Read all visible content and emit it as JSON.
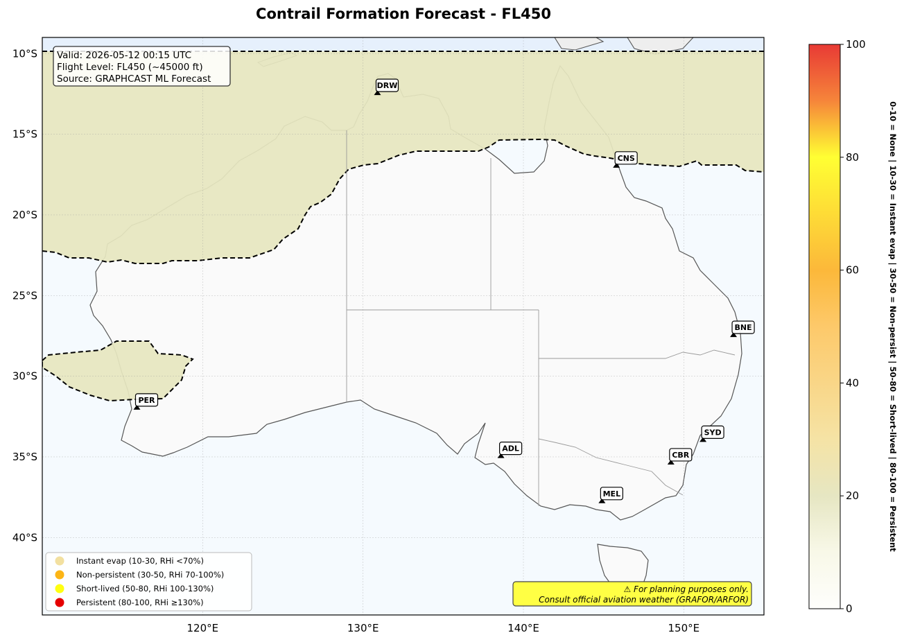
{
  "title": "Contrail Formation Forecast - FL450",
  "info": {
    "valid": "Valid: 2026-05-12 00:15 UTC",
    "flight_level": "Flight Level: FL450 (~45000 ft)",
    "source": "Source: GRAPHCAST ML Forecast"
  },
  "axes": {
    "lat_ticks": [
      {
        "value": -10,
        "label": "10°S"
      },
      {
        "value": -15,
        "label": "15°S"
      },
      {
        "value": -20,
        "label": "20°S"
      },
      {
        "value": -25,
        "label": "25°S"
      },
      {
        "value": -30,
        "label": "30°S"
      },
      {
        "value": -35,
        "label": "35°S"
      },
      {
        "value": -40,
        "label": "40°S"
      }
    ],
    "lon_ticks": [
      {
        "value": 120,
        "label": "120°E"
      },
      {
        "value": 130,
        "label": "130°E"
      },
      {
        "value": 140,
        "label": "140°E"
      },
      {
        "value": 150,
        "label": "150°E"
      }
    ],
    "lon_range": [
      110,
      155
    ],
    "lat_range": [
      -44.8,
      -9.0
    ]
  },
  "stations": [
    {
      "code": "DRW",
      "lon": 130.9,
      "lat": -12.4
    },
    {
      "code": "CNS",
      "lon": 145.8,
      "lat": -16.9
    },
    {
      "code": "BNE",
      "lon": 153.1,
      "lat": -27.4
    },
    {
      "code": "PER",
      "lon": 115.9,
      "lat": -31.9
    },
    {
      "code": "SYD",
      "lon": 151.2,
      "lat": -33.9
    },
    {
      "code": "CBR",
      "lon": 149.2,
      "lat": -35.3
    },
    {
      "code": "ADL",
      "lon": 138.6,
      "lat": -34.9
    },
    {
      "code": "MEL",
      "lon": 144.9,
      "lat": -37.7
    }
  ],
  "legend": [
    {
      "label": "Instant evap (10-30, RHi <70%)",
      "color": "#f2e0a0"
    },
    {
      "label": "Non-persistent (30-50, RHi 70-100%)",
      "color": "#fcb515"
    },
    {
      "label": "Short-lived (50-80, RHi 100-130%)",
      "color": "#ffff11"
    },
    {
      "label": "Persistent (80-100, RHi ≥130%)",
      "color": "#e50000"
    }
  ],
  "warning": {
    "line1": "⚠ For planning purposes only.",
    "line2": "Consult official aviation weather (GRAFOR/ARFOR)",
    "color": "#ffff44"
  },
  "colorbar": {
    "ticks": [
      {
        "value": 0,
        "label": "0"
      },
      {
        "value": 20,
        "label": "20"
      },
      {
        "value": 40,
        "label": "40"
      },
      {
        "value": 60,
        "label": "60"
      },
      {
        "value": 80,
        "label": "80"
      },
      {
        "value": 100,
        "label": "100"
      }
    ],
    "range": [
      0,
      100
    ],
    "label": "0-10 = None  |  10-30 = Instant evap  |  30-50 = Non-persist  |  50-80 = Short-lived  |  80-100 = Persistent"
  },
  "colors": {
    "ocean": "#f5fafe",
    "land": "#fafafa",
    "contrail_zone": "#e6e6c0"
  }
}
